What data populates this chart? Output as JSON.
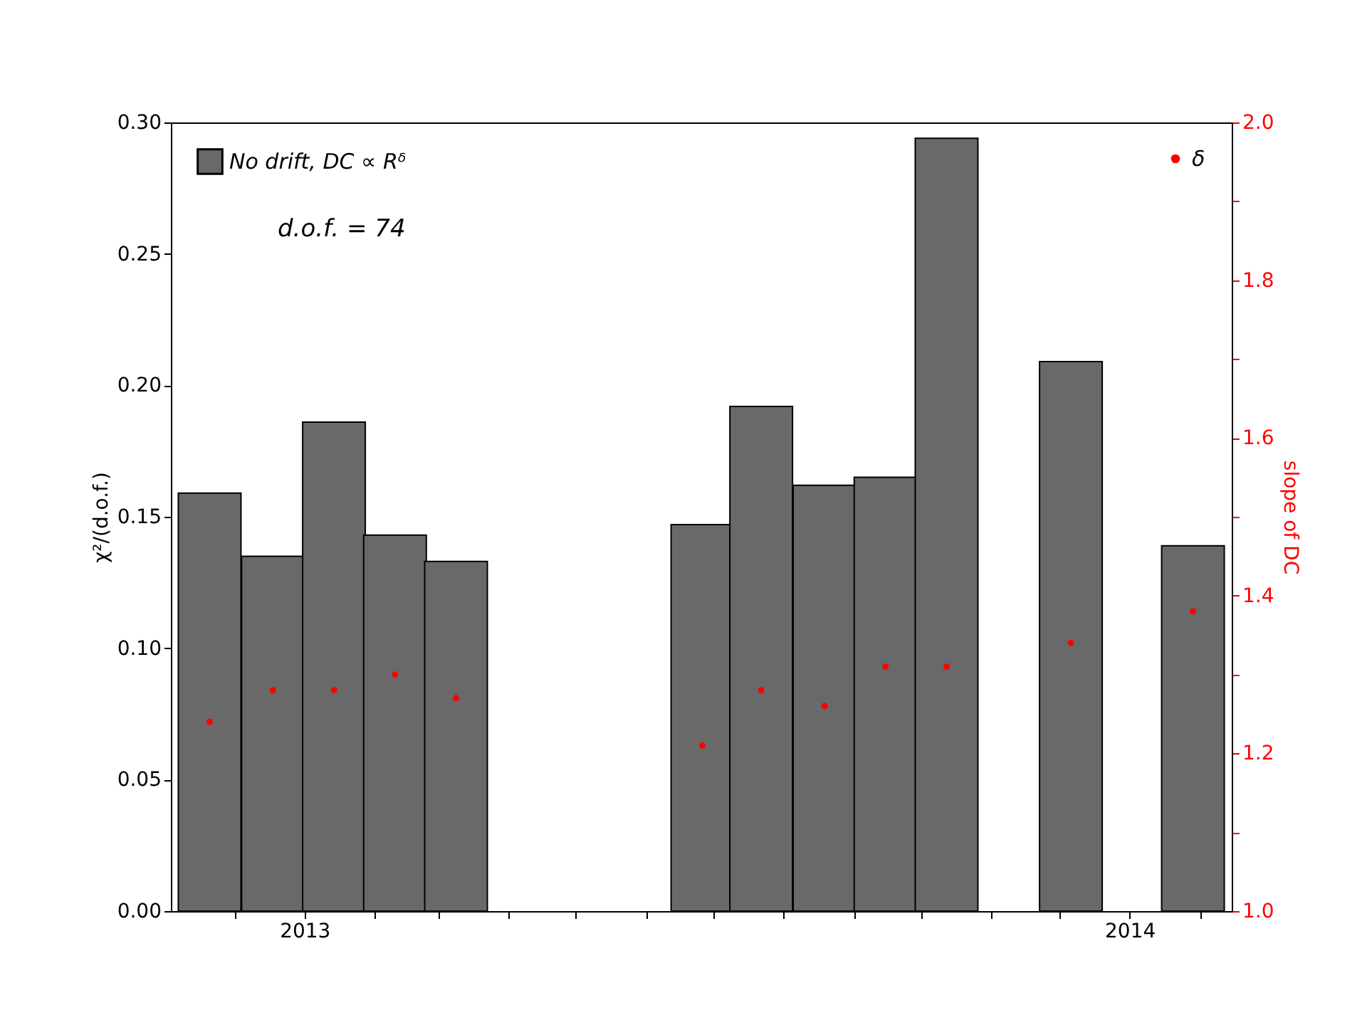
{
  "chart_data": {
    "type": "bar",
    "ylabel": "χ²/(d.o.f.)",
    "y2label": "slope of DC",
    "x": [
      "2012-11-20",
      "2012-12-18",
      "2013-01-14",
      "2013-02-10",
      "2013-03-09",
      "2013-06-26",
      "2013-07-22",
      "2013-08-19",
      "2013-09-15",
      "2013-10-12",
      "2013-12-06",
      "2014-01-29"
    ],
    "series": [
      {
        "name": "No drift, DC ∝ Rᵟ",
        "color": "#696969",
        "values": [
          0.159,
          0.135,
          0.186,
          0.143,
          0.133,
          0.147,
          0.192,
          0.162,
          0.165,
          0.294,
          0.209,
          0.139
        ]
      },
      {
        "name": "δ",
        "type": "scatter",
        "axis": "y2",
        "color": "#ff0000",
        "marker": "circle",
        "values": [
          1.24,
          1.28,
          1.28,
          1.3,
          1.27,
          1.21,
          1.28,
          1.26,
          1.31,
          1.31,
          1.34,
          1.38
        ]
      }
    ],
    "annotations": [
      "d.o.f. = 74"
    ],
    "xlim": [
      "2012-11-06",
      "2014-02-12"
    ],
    "xticks": [
      {
        "value": "2012-12-01",
        "label": null
      },
      {
        "value": "2013-01-01",
        "label": "2013"
      },
      {
        "value": "2013-02-01",
        "label": null
      },
      {
        "value": "2013-03-01",
        "label": null
      },
      {
        "value": "2013-04-01",
        "label": null
      },
      {
        "value": "2013-05-01",
        "label": null
      },
      {
        "value": "2013-06-01",
        "label": null
      },
      {
        "value": "2013-07-01",
        "label": null
      },
      {
        "value": "2013-08-01",
        "label": null
      },
      {
        "value": "2013-09-01",
        "label": null
      },
      {
        "value": "2013-10-01",
        "label": null
      },
      {
        "value": "2013-11-01",
        "label": null
      },
      {
        "value": "2013-12-01",
        "label": null
      },
      {
        "value": "2014-01-01",
        "label": "2014"
      },
      {
        "value": "2014-02-01",
        "label": null
      }
    ],
    "ylim": [
      0,
      0.3
    ],
    "yticks": [
      {
        "value": 0,
        "label": "0.00"
      },
      {
        "value": 0.05,
        "label": "0.05"
      },
      {
        "value": 0.1,
        "label": "0.10"
      },
      {
        "value": 0.15,
        "label": "0.15"
      },
      {
        "value": 0.2,
        "label": "0.20"
      },
      {
        "value": 0.25,
        "label": "0.25"
      },
      {
        "value": 0.3,
        "label": "0.30"
      }
    ],
    "y2lim": [
      1.0,
      2.0
    ],
    "y2ticks": [
      {
        "value": 1.0,
        "label": "1.0"
      },
      {
        "value": 1.1,
        "label": null
      },
      {
        "value": 1.2,
        "label": "1.2"
      },
      {
        "value": 1.3,
        "label": null
      },
      {
        "value": 1.4,
        "label": "1.4"
      },
      {
        "value": 1.5,
        "label": null
      },
      {
        "value": 1.6,
        "label": "1.6"
      },
      {
        "value": 1.7,
        "label": null
      },
      {
        "value": 1.8,
        "label": "1.8"
      },
      {
        "value": 1.9,
        "label": null
      },
      {
        "value": 2.0,
        "label": "2.0"
      }
    ],
    "grid": false,
    "legend": "top left"
  }
}
